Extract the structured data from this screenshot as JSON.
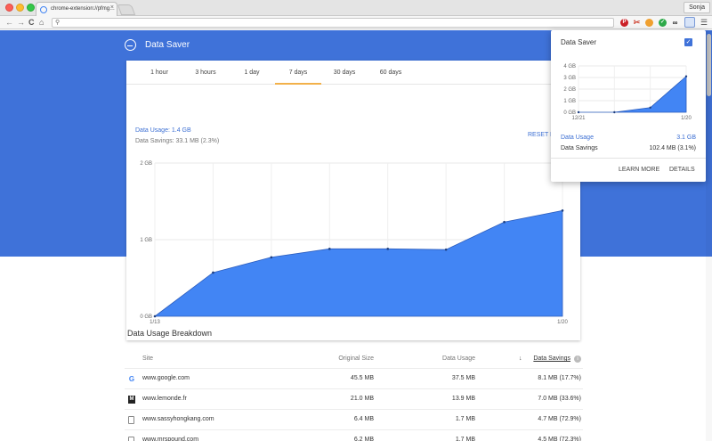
{
  "browser": {
    "tab_title": "chrome-extension://pfmg…",
    "tab_close": "×",
    "profile": "Sonja",
    "back": "←",
    "forward": "→",
    "reload": "C",
    "home": "⌂",
    "menu": "☰",
    "extensions": [
      "pinterest-icon",
      "scissors-icon",
      "color-picker-icon",
      "check-icon",
      "glasses-icon",
      "data-saver-icon"
    ]
  },
  "header": {
    "title": "Data Saver"
  },
  "main": {
    "tabs": [
      {
        "label": "1 hour"
      },
      {
        "label": "3 hours"
      },
      {
        "label": "1 day"
      },
      {
        "label": "7 days"
      },
      {
        "label": "30 days"
      },
      {
        "label": "60 days"
      }
    ],
    "active_tab": 3,
    "usage": "Data Usage: 1.4 GB",
    "savings": "Data Savings: 33.1 MB (2.3%)",
    "reset": "RESET D",
    "accent": "#3f72d9",
    "series_color": "#4285f4"
  },
  "chart_data": [
    {
      "type": "area",
      "x": [
        "1/13",
        "1/14",
        "1/15",
        "1/16",
        "1/17",
        "1/18",
        "1/19",
        "1/20"
      ],
      "xticks": [
        "1/13",
        "1/20"
      ],
      "yticks": [
        "0 GB",
        "1 GB",
        "2 GB"
      ],
      "ylim": [
        0,
        2
      ],
      "grid": true,
      "series": [
        {
          "values": [
            0,
            0.57,
            0.77,
            0.88,
            0.88,
            0.87,
            1.23,
            1.38
          ]
        }
      ]
    },
    {
      "type": "area",
      "x": [
        "12/21",
        "1/1",
        "1/10",
        "1/20"
      ],
      "xticks": [
        "12/21",
        "1/20"
      ],
      "yticks": [
        "0 GB",
        "1 GB",
        "2 GB",
        "3 GB",
        "4 GB"
      ],
      "ylim": [
        0,
        4
      ],
      "grid": true,
      "series": [
        {
          "values": [
            0,
            0,
            0.4,
            3.1
          ]
        }
      ]
    }
  ],
  "breakdown": {
    "title": "Data Usage Breakdown",
    "columns": [
      "Site",
      "Original Size",
      "Data Usage",
      "Data Savings"
    ],
    "sort_icon": "↓",
    "info_icon": "i",
    "rows": [
      {
        "icon": "google-icon",
        "site": "www.google.com",
        "original": "45.5 MB",
        "usage": "37.5 MB",
        "savings": "8.1 MB (17.7%)"
      },
      {
        "icon": "lemonde-icon",
        "site": "www.lemonde.fr",
        "original": "21.0 MB",
        "usage": "13.9 MB",
        "savings": "7.0 MB (33.6%)"
      },
      {
        "icon": "document-icon",
        "site": "www.sassyhongkang.com",
        "original": "6.4 MB",
        "usage": "1.7 MB",
        "savings": "4.7 MB (72.9%)"
      },
      {
        "icon": "document-icon",
        "site": "www.mrspound.com",
        "original": "6.2 MB",
        "usage": "1.7 MB",
        "savings": "4.5 MB (72.3%)"
      }
    ]
  },
  "popup": {
    "title": "Data Saver",
    "check": "✓",
    "usage_label": "Data Usage",
    "usage_value": "3.1 GB",
    "savings_label": "Data Savings",
    "savings_value": "102.4 MB (3.1%)",
    "learn_more": "LEARN MORE",
    "details": "DETAILS"
  }
}
